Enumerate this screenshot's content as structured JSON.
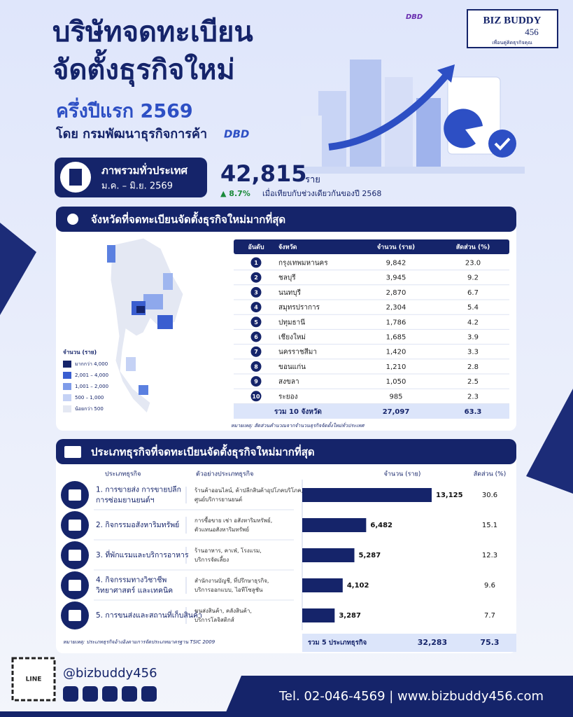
{
  "header": {
    "title_lines": [
      "บริษัทจดทะเบียน",
      "จัดตั้งธุรกิจใหม่"
    ],
    "subtitle": "ครึ่งปีแรก 2569",
    "byline": "โดย กรมพัฒนาธุรกิจการค้า",
    "dbd": "DBD",
    "brand": "BIZ BUDDY",
    "brand_number": "456",
    "brand_tagline": "เพื่อนคู่คิดธุรกิจคุณ"
  },
  "summary": {
    "label": "ภาพรวมทั่วประเทศ",
    "period": "ม.ค. – มิ.ย. 2569",
    "total": "42,815",
    "unit": "ราย",
    "change": "▲ 8.7%",
    "comparison": "เมื่อเทียบกับช่วงเดียวกันของปี 2568"
  },
  "provinces": {
    "title": "จังหวัดที่จดทะเบียนจัดตั้งธุรกิจใหม่มากที่สุด",
    "legend": {
      "title": "จำนวน (ราย)",
      "items": [
        "มากกว่า 4,000",
        "2,001 – 4,000",
        "1,001 – 2,000",
        "500 – 1,000",
        "น้อยกว่า 500"
      ]
    },
    "table": {
      "headers": [
        "อันดับ",
        "จังหวัด",
        "จำนวน (ราย)",
        "สัดส่วน (%)"
      ],
      "rows": [
        [
          1,
          "กรุงเทพมหานคร",
          "9,842",
          "23.0"
        ],
        [
          2,
          "ชลบุรี",
          "3,945",
          "9.2"
        ],
        [
          3,
          "นนทบุรี",
          "2,870",
          "6.7"
        ],
        [
          4,
          "สมุทรปราการ",
          "2,304",
          "5.4"
        ],
        [
          5,
          "ปทุมธานี",
          "1,786",
          "4.2"
        ],
        [
          6,
          "เชียงใหม่",
          "1,685",
          "3.9"
        ],
        [
          7,
          "นครราชสีมา",
          "1,420",
          "3.3"
        ],
        [
          8,
          "ขอนแก่น",
          "1,210",
          "2.8"
        ],
        [
          9,
          "สงขลา",
          "1,050",
          "2.5"
        ],
        [
          10,
          "ระยอง",
          "985",
          "2.3"
        ]
      ],
      "total": [
        "รวม 10 จังหวัด",
        "27,097",
        "63.3"
      ]
    },
    "note": "หมายเหตุ: สัดส่วนคำนวณจากจำนวนธุรกิจจัดตั้งใหม่ทั่วประเทศ"
  },
  "business": {
    "title": "ประเภทธุรกิจที่จดทะเบียนจัดตั้งธุรกิจใหม่มากที่สุด",
    "headers": [
      "ประเภทธุรกิจ",
      "ตัวอย่างประเภทธุรกิจ",
      "จำนวน (ราย)",
      "สัดส่วน (%)"
    ],
    "rows": [
      {
        "name": [
          "1. การขายส่ง การขายปลีก",
          "การซ่อมยานยนต์ฯ"
        ],
        "examples": [
          "ร้านค้าออนไลน์, ค้าปลีกสินค้าอุปโภคบริโภค,",
          "ศูนย์บริการยานยนต์"
        ],
        "value": 13125,
        "value_label": "13,125",
        "share": "30.6"
      },
      {
        "name": [
          "2. กิจกรรมอสังหาริมทรัพย์"
        ],
        "examples": [
          "การซื้อขาย เช่า อสังหาริมทรัพย์,",
          "ตัวแทนอสังหาริมทรัพย์"
        ],
        "value": 6482,
        "value_label": "6,482",
        "share": "15.1"
      },
      {
        "name": [
          "3. ที่พักแรมและบริการอาหาร"
        ],
        "examples": [
          "ร้านอาหาร, คาเฟ่, โรงแรม,",
          "บริการจัดเลี้ยง"
        ],
        "value": 5287,
        "value_label": "5,287",
        "share": "12.3"
      },
      {
        "name": [
          "4. กิจกรรมทางวิชาชีพ",
          "วิทยาศาสตร์ และเทคนิค"
        ],
        "examples": [
          "สำนักงานบัญชี, ที่ปรึกษาธุรกิจ,",
          "บริการออกแบบ, ไอทีโซลูชัน"
        ],
        "value": 4102,
        "value_label": "4,102",
        "share": "9.6"
      },
      {
        "name": [
          "5. การขนส่งและสถานที่เก็บสินค้า"
        ],
        "examples": [
          "ขนส่งสินค้า, คลังสินค้า,",
          "บริการโลจิสติกส์"
        ],
        "value": 3287,
        "value_label": "3,287",
        "share": "7.7"
      }
    ],
    "total": [
      "รวม 5 ประเภทธุรกิจ",
      "32,283",
      "75.3"
    ],
    "note": "หมายเหตุ: ประเภทธุรกิจอ้างอิงตามการจัดประเภทมาตรฐาน TSIC 2009"
  },
  "footer": {
    "handle": "@bizbuddy456",
    "qr_label": "LINE",
    "contact": "Tel. 02-046-4569 | www.bizbuddy456.com"
  }
}
